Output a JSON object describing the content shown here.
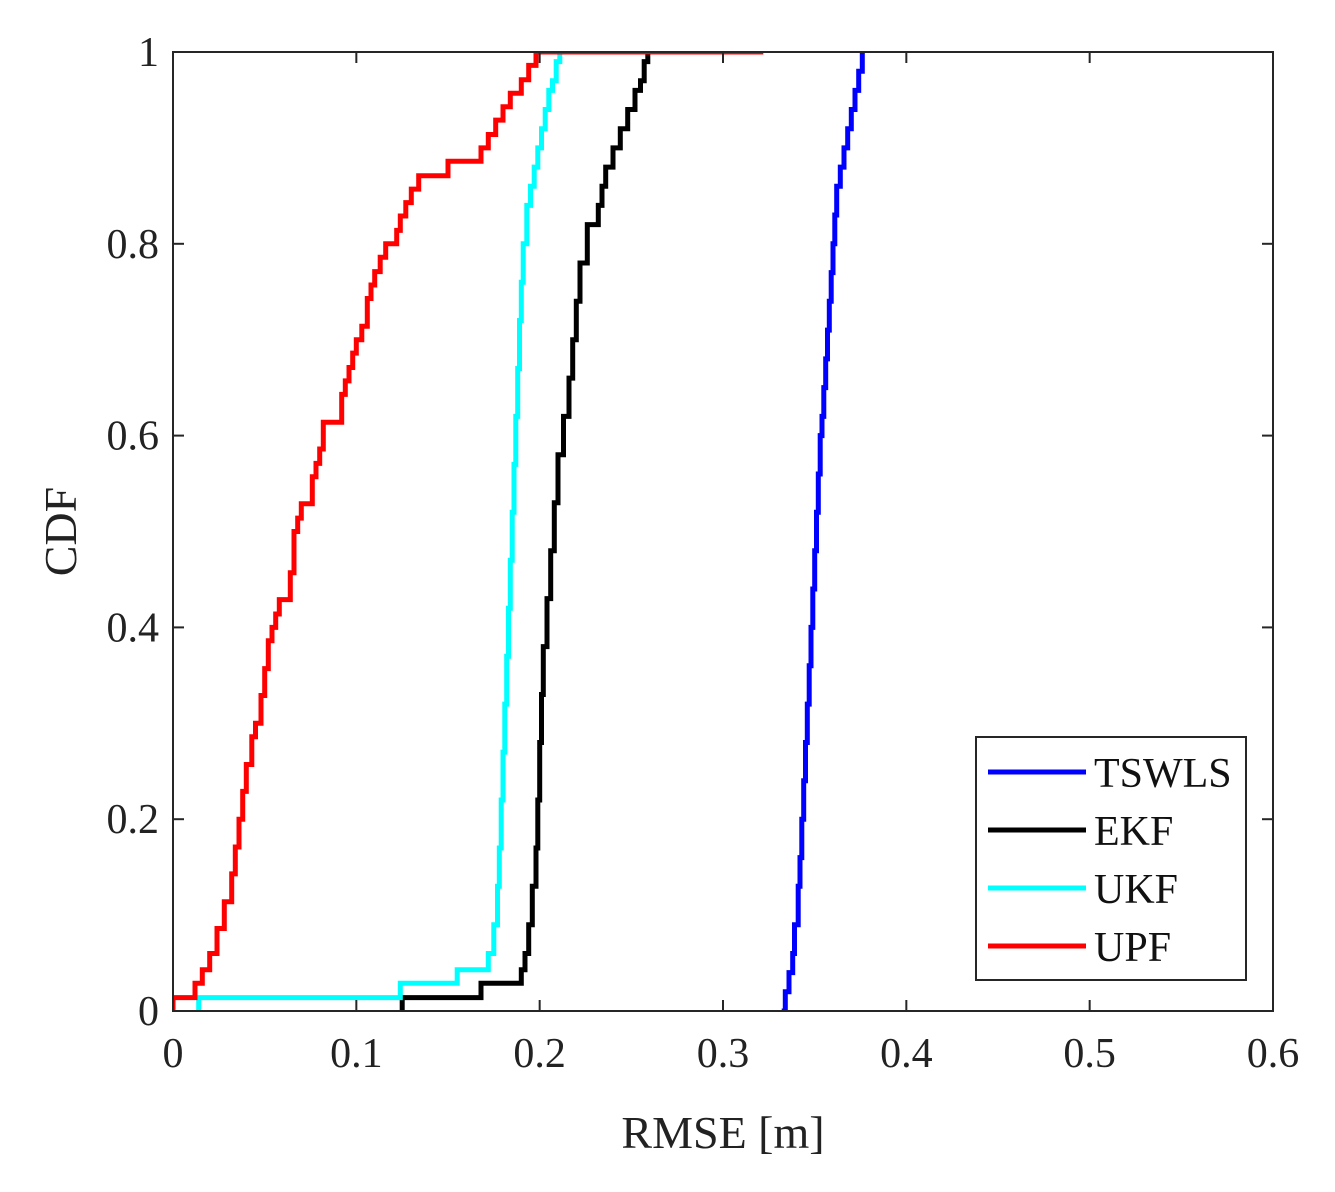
{
  "chart_data": {
    "type": "line",
    "step": true,
    "xlabel": "RMSE [m]",
    "ylabel": "CDF",
    "xlim": [
      0,
      0.6
    ],
    "ylim": [
      0,
      1
    ],
    "xticks": [
      0,
      0.1,
      0.2,
      0.3,
      0.4,
      0.5,
      0.6
    ],
    "xtick_labels": [
      "0",
      "0.1",
      "0.2",
      "0.3",
      "0.4",
      "0.5",
      "0.6"
    ],
    "yticks": [
      0,
      0.2,
      0.4,
      0.6,
      0.8,
      1
    ],
    "ytick_labels": [
      "0",
      "0.2",
      "0.4",
      "0.6",
      "0.8",
      "1"
    ],
    "grid": false,
    "box": true,
    "legend_position": "bottom-right",
    "series": [
      {
        "name": "TSWLS",
        "color": "#0000ff",
        "x": [
          0.332,
          0.334,
          0.336,
          0.338,
          0.339,
          0.341,
          0.342,
          0.343,
          0.344,
          0.345,
          0.346,
          0.347,
          0.348,
          0.349,
          0.35,
          0.351,
          0.352,
          0.353,
          0.354,
          0.355,
          0.356,
          0.357,
          0.358,
          0.359,
          0.36,
          0.361,
          0.362,
          0.364,
          0.366,
          0.368,
          0.37,
          0.372,
          0.374,
          0.376
        ],
        "y": [
          0,
          0.02,
          0.04,
          0.06,
          0.09,
          0.13,
          0.16,
          0.2,
          0.24,
          0.28,
          0.32,
          0.36,
          0.4,
          0.44,
          0.48,
          0.52,
          0.56,
          0.6,
          0.62,
          0.65,
          0.68,
          0.71,
          0.74,
          0.77,
          0.8,
          0.83,
          0.86,
          0.88,
          0.9,
          0.92,
          0.94,
          0.96,
          0.98,
          1
        ]
      },
      {
        "name": "EKF",
        "color": "#000000",
        "x": [
          0.125,
          0.168,
          0.19,
          0.192,
          0.194,
          0.196,
          0.198,
          0.199,
          0.2,
          0.201,
          0.202,
          0.204,
          0.206,
          0.208,
          0.21,
          0.213,
          0.216,
          0.218,
          0.22,
          0.222,
          0.226,
          0.232,
          0.234,
          0.236,
          0.24,
          0.244,
          0.248,
          0.252,
          0.255,
          0.257,
          0.259
        ],
        "y": [
          0.014,
          0.029,
          0.043,
          0.06,
          0.09,
          0.13,
          0.17,
          0.22,
          0.28,
          0.33,
          0.38,
          0.43,
          0.48,
          0.53,
          0.58,
          0.62,
          0.66,
          0.7,
          0.74,
          0.78,
          0.82,
          0.84,
          0.86,
          0.88,
          0.9,
          0.92,
          0.94,
          0.96,
          0.97,
          0.99,
          1
        ]
      },
      {
        "name": "UKF",
        "color": "#00ffff",
        "x": [
          0.014,
          0.124,
          0.155,
          0.172,
          0.175,
          0.177,
          0.178,
          0.179,
          0.18,
          0.181,
          0.182,
          0.183,
          0.184,
          0.185,
          0.186,
          0.187,
          0.188,
          0.189,
          0.19,
          0.191,
          0.193,
          0.195,
          0.197,
          0.199,
          0.201,
          0.203,
          0.205,
          0.207,
          0.209,
          0.211
        ],
        "y": [
          0.014,
          0.029,
          0.043,
          0.06,
          0.09,
          0.13,
          0.17,
          0.22,
          0.27,
          0.32,
          0.37,
          0.42,
          0.47,
          0.52,
          0.57,
          0.62,
          0.67,
          0.72,
          0.76,
          0.8,
          0.84,
          0.86,
          0.88,
          0.9,
          0.92,
          0.94,
          0.96,
          0.97,
          0.99,
          1
        ]
      },
      {
        "name": "UPF",
        "color": "#ff0000",
        "x": [
          0,
          0.012,
          0.016,
          0.02,
          0.024,
          0.028,
          0.032,
          0.034,
          0.036,
          0.038,
          0.04,
          0.043,
          0.045,
          0.048,
          0.05,
          0.052,
          0.054,
          0.056,
          0.058,
          0.064,
          0.066,
          0.068,
          0.07,
          0.076,
          0.078,
          0.08,
          0.082,
          0.092,
          0.094,
          0.096,
          0.098,
          0.1,
          0.103,
          0.106,
          0.108,
          0.11,
          0.113,
          0.116,
          0.122,
          0.124,
          0.127,
          0.13,
          0.134,
          0.15,
          0.168,
          0.172,
          0.176,
          0.18,
          0.184,
          0.19,
          0.194,
          0.198,
          0.2,
          0.234,
          0.278,
          0.322
        ],
        "y": [
          0.014,
          0.029,
          0.043,
          0.06,
          0.086,
          0.114,
          0.143,
          0.171,
          0.2,
          0.229,
          0.257,
          0.286,
          0.3,
          0.329,
          0.357,
          0.386,
          0.4,
          0.414,
          0.429,
          0.457,
          0.5,
          0.514,
          0.529,
          0.557,
          0.571,
          0.586,
          0.614,
          0.643,
          0.657,
          0.671,
          0.686,
          0.7,
          0.714,
          0.743,
          0.757,
          0.771,
          0.786,
          0.8,
          0.814,
          0.829,
          0.843,
          0.857,
          0.871,
          0.886,
          0.9,
          0.914,
          0.929,
          0.943,
          0.957,
          0.971,
          0.986,
          1,
          1,
          1,
          1,
          1
        ]
      }
    ]
  }
}
